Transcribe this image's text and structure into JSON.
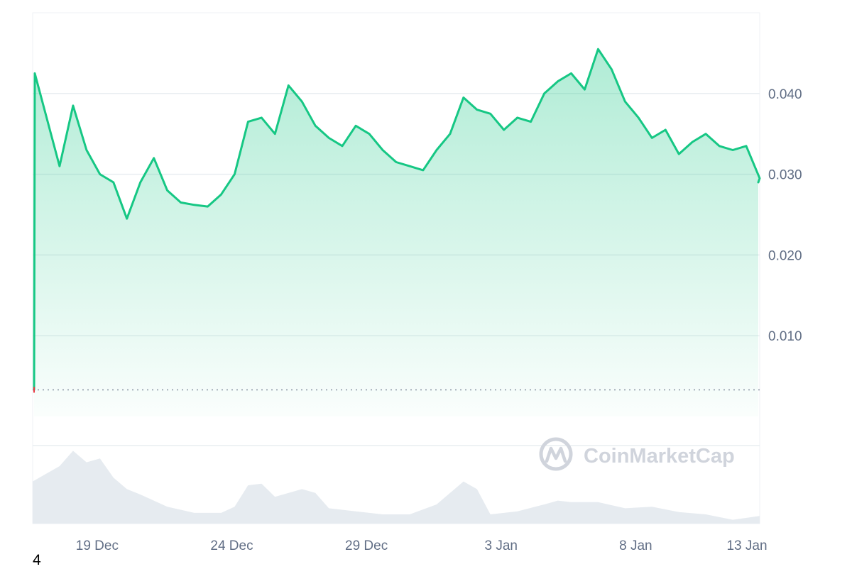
{
  "chart_data": {
    "type": "area",
    "title": "",
    "xlabel": "",
    "ylabel": "",
    "x_tick_labels": [
      "19 Dec",
      "24 Dec",
      "29 Dec",
      "3 Jan",
      "8 Jan",
      "13 Jan"
    ],
    "y_tick_labels": [
      "0.040",
      "0.030",
      "0.020",
      "0.010"
    ],
    "y_ticks": [
      0.04,
      0.03,
      0.02,
      0.01
    ],
    "ylim": [
      0.0,
      0.05
    ],
    "xlim": [
      "2023-12-17",
      "2024-01-13"
    ],
    "grid": true,
    "baseline_value": 0.0033,
    "series": [
      {
        "color": "#16c784",
        "x": [
          "2023-12-17",
          "2023-12-17",
          "2023-12-18",
          "2023-12-18",
          "2023-12-19",
          "2023-12-19",
          "2023-12-20",
          "2023-12-20",
          "2023-12-21",
          "2023-12-21",
          "2023-12-22",
          "2023-12-22",
          "2023-12-23",
          "2023-12-23",
          "2023-12-24",
          "2023-12-24",
          "2023-12-25",
          "2023-12-25",
          "2023-12-26",
          "2023-12-26",
          "2023-12-27",
          "2023-12-27",
          "2023-12-28",
          "2023-12-28",
          "2023-12-29",
          "2023-12-29",
          "2023-12-30",
          "2023-12-30",
          "2023-12-31",
          "2023-12-31",
          "2024-01-01",
          "2024-01-01",
          "2024-01-02",
          "2024-01-02",
          "2024-01-03",
          "2024-01-03",
          "2024-01-04",
          "2024-01-04",
          "2024-01-05",
          "2024-01-05",
          "2024-01-06",
          "2024-01-06",
          "2024-01-07",
          "2024-01-07",
          "2024-01-08",
          "2024-01-08",
          "2024-01-09",
          "2024-01-09",
          "2024-01-10",
          "2024-01-10",
          "2024-01-11",
          "2024-01-11",
          "2024-01-12",
          "2024-01-12",
          "2024-01-13",
          "2024-01-13"
        ],
        "y": [
          0.0033,
          0.0425,
          0.031,
          0.0385,
          0.033,
          0.03,
          0.029,
          0.0245,
          0.029,
          0.032,
          0.028,
          0.0265,
          0.0262,
          0.026,
          0.0275,
          0.03,
          0.0365,
          0.037,
          0.035,
          0.041,
          0.039,
          0.036,
          0.0345,
          0.0335,
          0.036,
          0.035,
          0.033,
          0.0315,
          0.031,
          0.0305,
          0.033,
          0.035,
          0.0395,
          0.038,
          0.0375,
          0.0355,
          0.037,
          0.0365,
          0.04,
          0.0415,
          0.0425,
          0.0405,
          0.0455,
          0.043,
          0.039,
          0.037,
          0.0345,
          0.0355,
          0.0325,
          0.034,
          0.035,
          0.0335,
          0.033,
          0.0335,
          0.0295,
          0.029
        ]
      }
    ],
    "volume": {
      "color": "#e6ebf0",
      "x": [
        "2023-12-17",
        "2023-12-18",
        "2023-12-18",
        "2023-12-19",
        "2023-12-19",
        "2023-12-20",
        "2023-12-20",
        "2023-12-21",
        "2023-12-21",
        "2023-12-22",
        "2023-12-23",
        "2023-12-24",
        "2023-12-24",
        "2023-12-25",
        "2023-12-25",
        "2023-12-26",
        "2023-12-27",
        "2023-12-27",
        "2023-12-28",
        "2023-12-29",
        "2023-12-30",
        "2023-12-31",
        "2024-01-01",
        "2024-01-01",
        "2024-01-02",
        "2024-01-02",
        "2024-01-03",
        "2024-01-04",
        "2024-01-05",
        "2024-01-05",
        "2024-01-06",
        "2024-01-07",
        "2024-01-08",
        "2024-01-09",
        "2024-01-10",
        "2024-01-11",
        "2024-01-12",
        "2024-01-13"
      ],
      "y": [
        0.55,
        0.75,
        0.95,
        0.8,
        0.85,
        0.6,
        0.45,
        0.38,
        0.3,
        0.22,
        0.14,
        0.14,
        0.22,
        0.5,
        0.52,
        0.35,
        0.45,
        0.4,
        0.2,
        0.16,
        0.12,
        0.12,
        0.25,
        0.4,
        0.55,
        0.45,
        0.12,
        0.16,
        0.25,
        0.3,
        0.28,
        0.28,
        0.2,
        0.22,
        0.15,
        0.12,
        0.05,
        0.1
      ]
    }
  },
  "watermark": {
    "brand": "CoinMarketCap",
    "logo_icon": "coinmarketcap-logo-icon"
  },
  "footnote": "4"
}
